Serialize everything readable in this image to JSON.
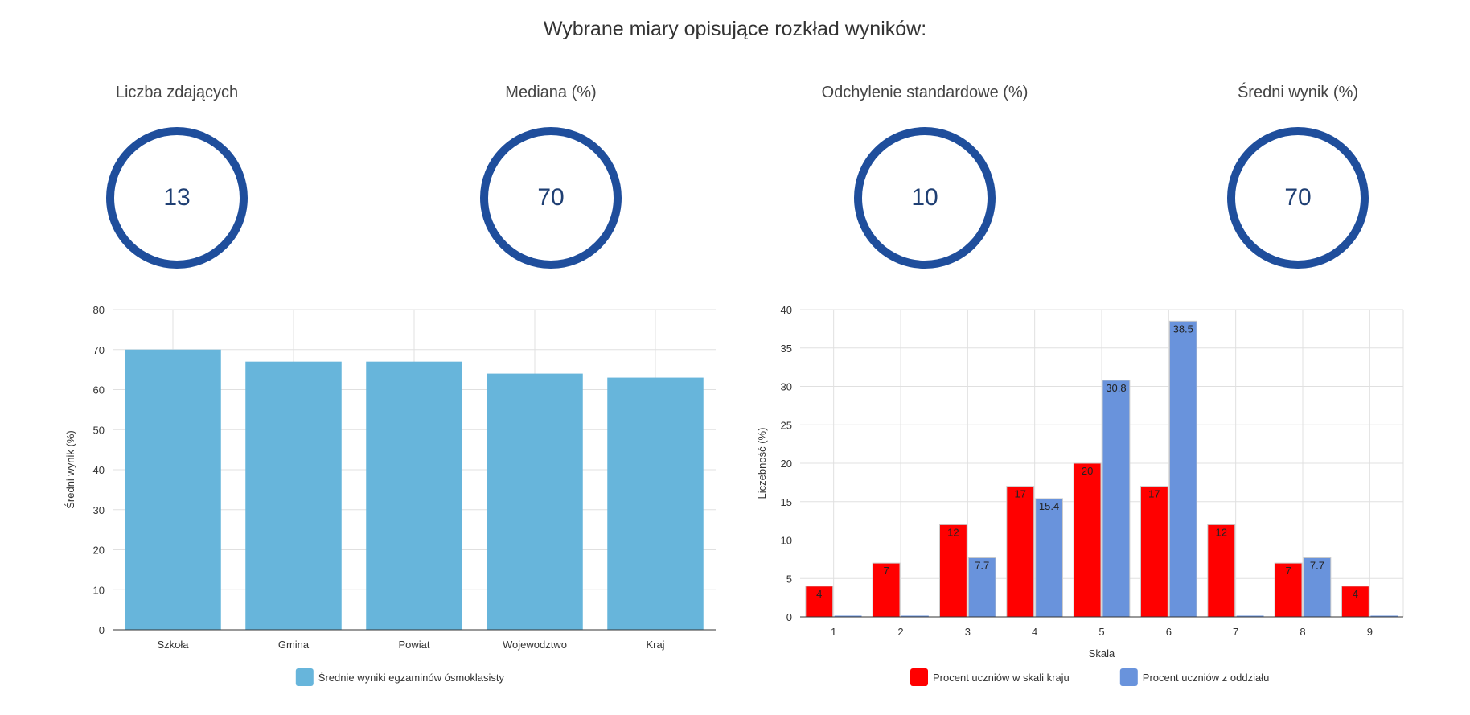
{
  "page": {
    "title": "Wybrane miary opisujące rozkład wyników:"
  },
  "stats": [
    {
      "label": "Liczba zdających",
      "value": "13"
    },
    {
      "label": "Mediana (%)",
      "value": "70"
    },
    {
      "label": "Odchylenie standardowe (%)",
      "value": "10"
    },
    {
      "label": "Średni wynik (%)",
      "value": "70"
    }
  ],
  "colors": {
    "ring": "#1f4e9c",
    "bar": "#67b5db",
    "red": "#ff0000",
    "blue": "#6993dc"
  },
  "chart_data": [
    {
      "type": "bar",
      "categories": [
        "Szkoła",
        "Gmina",
        "Powiat",
        "Wojewodztwo",
        "Kraj"
      ],
      "series": [
        {
          "name": "Średnie wyniki egzaminów ósmoklasisty",
          "values": [
            70,
            67,
            67,
            64,
            63
          ]
        }
      ],
      "ylabel": "Średni wynik (%)",
      "xlabel": "",
      "ylim": [
        0,
        80
      ],
      "yticks": [
        0,
        10,
        20,
        30,
        40,
        50,
        60,
        70,
        80
      ],
      "grid": true,
      "legend": "bottom"
    },
    {
      "type": "bar",
      "categories": [
        "1",
        "2",
        "3",
        "4",
        "5",
        "6",
        "7",
        "8",
        "9"
      ],
      "series": [
        {
          "name": "Procent uczniów w skali kraju",
          "values": [
            4,
            7,
            12,
            17,
            20,
            17,
            12,
            7,
            4
          ],
          "labels": [
            "4",
            "7",
            "12",
            "17",
            "20",
            "17",
            "12",
            "7",
            "4"
          ]
        },
        {
          "name": "Procent uczniów z oddziału",
          "values": [
            0,
            0,
            7.7,
            15.4,
            30.8,
            38.5,
            0,
            7.7,
            0
          ],
          "labels": [
            "",
            "",
            "7.7",
            "15.4",
            "30.8",
            "38.5",
            "",
            "7.7",
            ""
          ]
        }
      ],
      "xlabel": "Skala",
      "ylabel": "Liczebność (%)",
      "ylim": [
        0,
        40
      ],
      "yticks": [
        0,
        5,
        10,
        15,
        20,
        25,
        30,
        35,
        40
      ],
      "grid": true,
      "legend": "bottom"
    }
  ]
}
